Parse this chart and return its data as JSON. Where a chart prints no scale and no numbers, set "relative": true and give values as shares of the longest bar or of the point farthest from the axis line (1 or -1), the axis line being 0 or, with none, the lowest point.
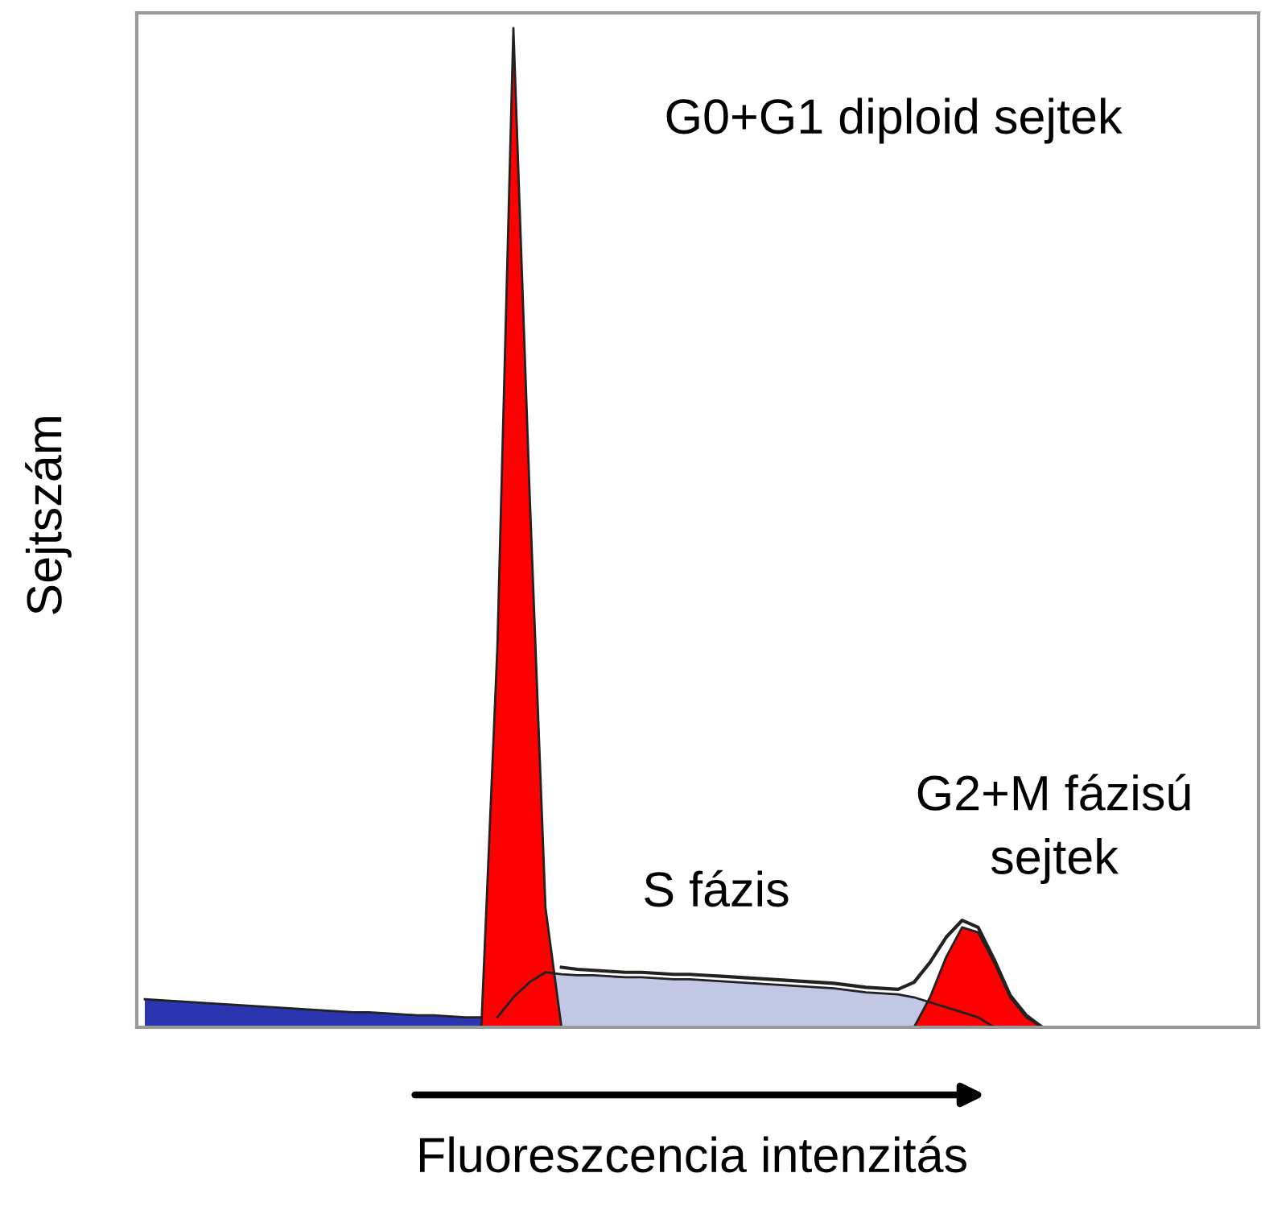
{
  "chart_data": {
    "type": "area",
    "relative": true,
    "xlabel": "Fluoreszcencia intenzitás",
    "ylabel": "Sejtszám",
    "categories": [
      null,
      null,
      null,
      null,
      null,
      null,
      null,
      null,
      null,
      null,
      null,
      null,
      null,
      null,
      null,
      null,
      null,
      null,
      null,
      null,
      null,
      null,
      null,
      null,
      null,
      null,
      null,
      null,
      null,
      null,
      null,
      null,
      null,
      null,
      null,
      null,
      null,
      null,
      null,
      null,
      null,
      null,
      null,
      null,
      null,
      null,
      null,
      null,
      null,
      null,
      null,
      null,
      null,
      null,
      null,
      null,
      null,
      null,
      null,
      null,
      null,
      null,
      null,
      null,
      null,
      null,
      null,
      null,
      null,
      null
    ],
    "series": [
      {
        "color": "#2b35b0",
        "values": [
          0.028,
          0.027,
          0.026,
          0.025,
          0.024,
          0.023,
          0.022,
          0.021,
          0.02,
          0.019,
          0.018,
          0.017,
          0.016,
          0.015,
          0.015,
          0.014,
          0.013,
          0.012,
          0.012,
          0.011,
          0.01,
          0.01,
          null,
          null,
          null,
          null,
          null,
          null,
          null,
          null,
          null,
          null,
          null,
          null,
          null,
          null,
          null,
          null,
          null,
          null,
          null,
          null,
          null,
          null,
          null,
          null,
          null,
          null,
          null,
          null,
          null,
          null,
          null,
          null,
          null,
          null,
          null,
          null,
          null,
          null,
          null,
          null,
          null,
          null,
          null,
          null,
          null,
          null,
          null,
          null
        ]
      },
      {
        "color": "#c3c7e6",
        "values": [
          null,
          null,
          null,
          null,
          null,
          null,
          null,
          null,
          null,
          null,
          null,
          null,
          null,
          null,
          null,
          null,
          null,
          null,
          null,
          null,
          null,
          null,
          0.01,
          0.03,
          0.045,
          0.055,
          0.053,
          0.052,
          0.052,
          0.051,
          0.05,
          0.05,
          0.049,
          0.048,
          0.048,
          0.047,
          0.046,
          0.045,
          0.044,
          0.043,
          0.042,
          0.041,
          0.04,
          0.039,
          0.037,
          0.035,
          0.034,
          0.033,
          0.03,
          0.025,
          0.02,
          0.015,
          0.01,
          0,
          null,
          null,
          null,
          null,
          null,
          null,
          null,
          null,
          null,
          null,
          null,
          null,
          null,
          null,
          null,
          null
        ]
      },
      {
        "color": "#ff0000",
        "values": [
          null,
          null,
          null,
          null,
          null,
          null,
          null,
          null,
          null,
          null,
          null,
          null,
          null,
          null,
          null,
          null,
          null,
          null,
          null,
          null,
          null,
          0,
          0.38,
          1,
          0.54,
          0.12,
          0,
          null,
          null,
          null,
          null,
          null,
          null,
          null,
          null,
          null,
          null,
          null,
          null,
          null,
          null,
          null,
          null,
          null,
          null,
          null,
          null,
          null,
          null,
          null,
          null,
          null,
          null,
          null,
          null,
          null,
          null,
          null,
          null,
          null,
          null,
          null,
          null,
          null,
          null,
          null,
          null,
          null,
          null,
          null
        ]
      },
      {
        "color": "#ff0000",
        "values": [
          null,
          null,
          null,
          null,
          null,
          null,
          null,
          null,
          null,
          null,
          null,
          null,
          null,
          null,
          null,
          null,
          null,
          null,
          null,
          null,
          null,
          null,
          null,
          null,
          null,
          null,
          null,
          null,
          null,
          null,
          null,
          null,
          null,
          null,
          null,
          null,
          null,
          null,
          null,
          null,
          null,
          null,
          null,
          null,
          null,
          null,
          null,
          null,
          0,
          0.03,
          0.07,
          0.1,
          0.095,
          0.065,
          0.03,
          0.01,
          0,
          null,
          null,
          null,
          null,
          null,
          null,
          null,
          null,
          null,
          null,
          null,
          null,
          null
        ]
      },
      {
        "type": "line",
        "color": "#222222",
        "values": [
          null,
          null,
          null,
          null,
          null,
          null,
          null,
          null,
          null,
          null,
          null,
          null,
          null,
          null,
          null,
          null,
          null,
          null,
          null,
          null,
          null,
          null,
          null,
          null,
          null,
          null,
          0.06,
          0.058,
          0.057,
          0.056,
          0.055,
          0.055,
          0.054,
          0.053,
          0.053,
          0.052,
          0.051,
          0.05,
          0.049,
          0.048,
          0.047,
          0.046,
          0.045,
          0.044,
          0.042,
          0.04,
          0.039,
          0.038,
          0.045,
          0.065,
          0.09,
          0.107,
          0.1,
          0.068,
          0.032,
          0.012,
          0,
          null,
          null,
          null,
          null,
          null,
          null,
          null,
          null,
          null,
          null,
          null,
          null,
          null
        ]
      }
    ],
    "annotations": [
      "G0+G1 diploid sejtek",
      "S fázis",
      "G2+M fázisú\nsejtek"
    ],
    "grid": false,
    "legend": false
  }
}
